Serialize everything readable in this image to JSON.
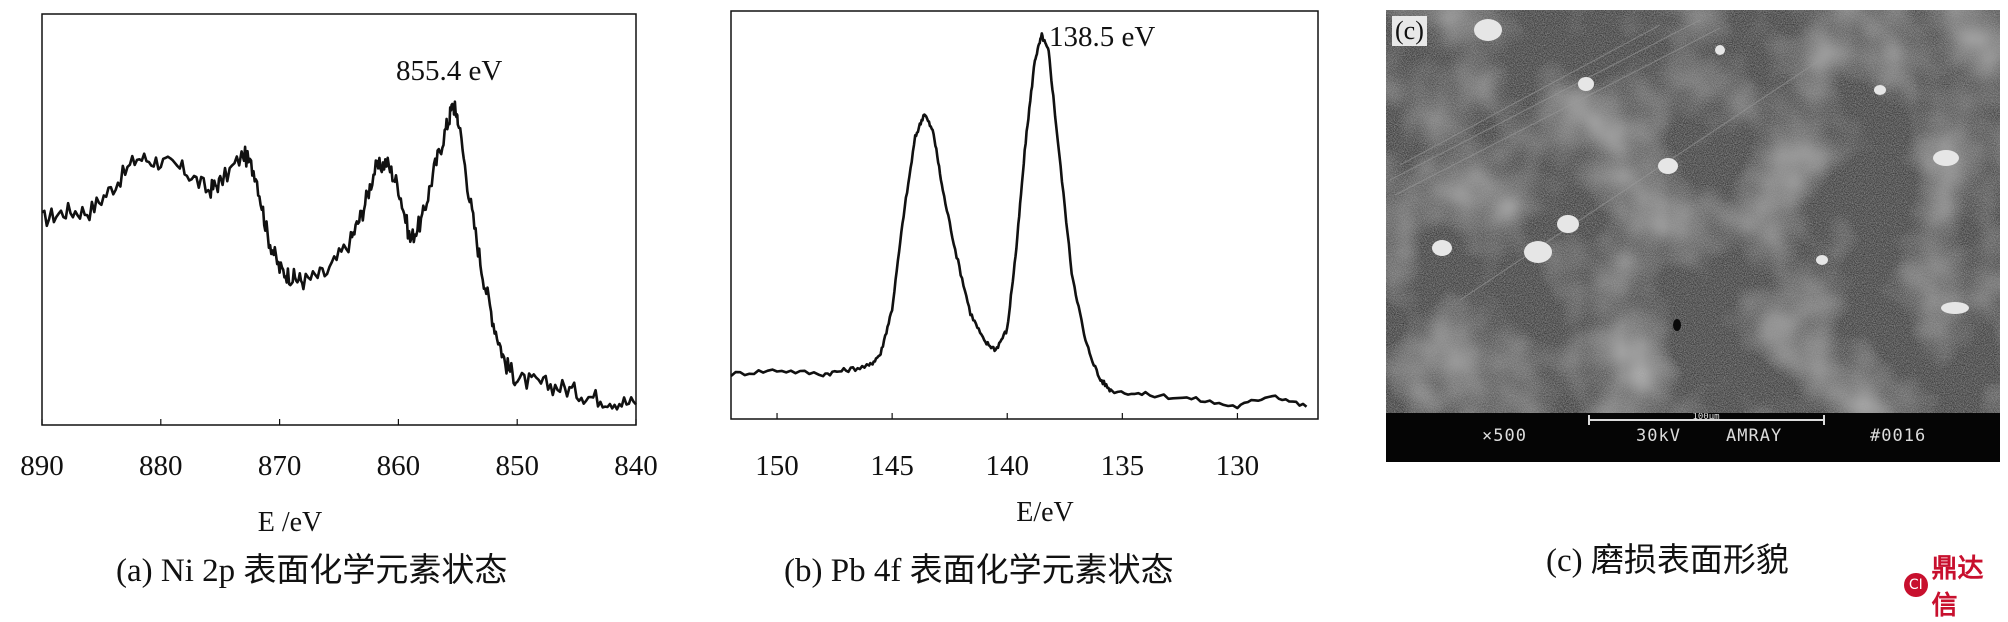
{
  "chart_data": [
    {
      "type": "line",
      "panel": "a",
      "xlabel": "E /eV",
      "xlim": [
        890,
        840
      ],
      "x_reversed": true,
      "xticks": [
        "890",
        "880",
        "870",
        "860",
        "850",
        "840"
      ],
      "peak_label": "855.4 eV",
      "caption": "(a)  Ni 2p 表面化学元素状态",
      "series": [
        {
          "x": [
            890,
            888,
            886,
            884,
            882,
            880,
            878,
            876,
            875,
            873,
            872,
            871,
            870,
            869,
            868,
            866,
            864,
            863,
            862,
            861,
            860,
            859,
            858,
            857,
            856,
            855.4,
            855,
            854,
            853,
            852,
            851,
            850,
            848,
            846,
            844,
            842,
            840
          ],
          "y": [
            0.5,
            0.52,
            0.52,
            0.58,
            0.65,
            0.64,
            0.62,
            0.57,
            0.59,
            0.66,
            0.61,
            0.46,
            0.38,
            0.36,
            0.35,
            0.37,
            0.45,
            0.52,
            0.62,
            0.64,
            0.58,
            0.45,
            0.5,
            0.62,
            0.72,
            0.78,
            0.75,
            0.55,
            0.38,
            0.25,
            0.15,
            0.11,
            0.1,
            0.09,
            0.07,
            0.06,
            0.05
          ]
        }
      ]
    },
    {
      "type": "line",
      "panel": "b",
      "xlabel": "E/eV",
      "xlim": [
        152,
        126.5
      ],
      "x_reversed": true,
      "xticks": [
        "150",
        "145",
        "140",
        "135",
        "130"
      ],
      "peak_label": "138.5 eV",
      "caption": "(b)   Pb 4f 表面化学元素状态",
      "series": [
        {
          "x": [
            152,
            150,
            148,
            147,
            146,
            145.5,
            145,
            144.5,
            144,
            143.6,
            143.2,
            142.8,
            142.2,
            141.6,
            141,
            140.5,
            140,
            139.6,
            139.2,
            138.8,
            138.5,
            138.2,
            137.8,
            137.2,
            136.6,
            136,
            135.5,
            134,
            132,
            130,
            128.5,
            127
          ],
          "y": [
            0.11,
            0.12,
            0.11,
            0.12,
            0.13,
            0.16,
            0.27,
            0.5,
            0.69,
            0.75,
            0.7,
            0.56,
            0.4,
            0.26,
            0.19,
            0.17,
            0.22,
            0.42,
            0.68,
            0.88,
            0.94,
            0.9,
            0.68,
            0.36,
            0.19,
            0.1,
            0.07,
            0.06,
            0.05,
            0.03,
            0.06,
            0.03
          ]
        }
      ]
    }
  ],
  "panel_c": {
    "label": "(c)",
    "caption": "(c)   磨损表面形貌",
    "scale_bar": "100μm",
    "status_bar": [
      "×500",
      "30kV",
      "AMRAY",
      "#0016"
    ]
  },
  "watermark": {
    "mark": "CI",
    "text": "鼎达信"
  },
  "colors": {
    "line": "#111111",
    "logo": "#c8102e",
    "sem_bg": "#3a3a3a"
  }
}
